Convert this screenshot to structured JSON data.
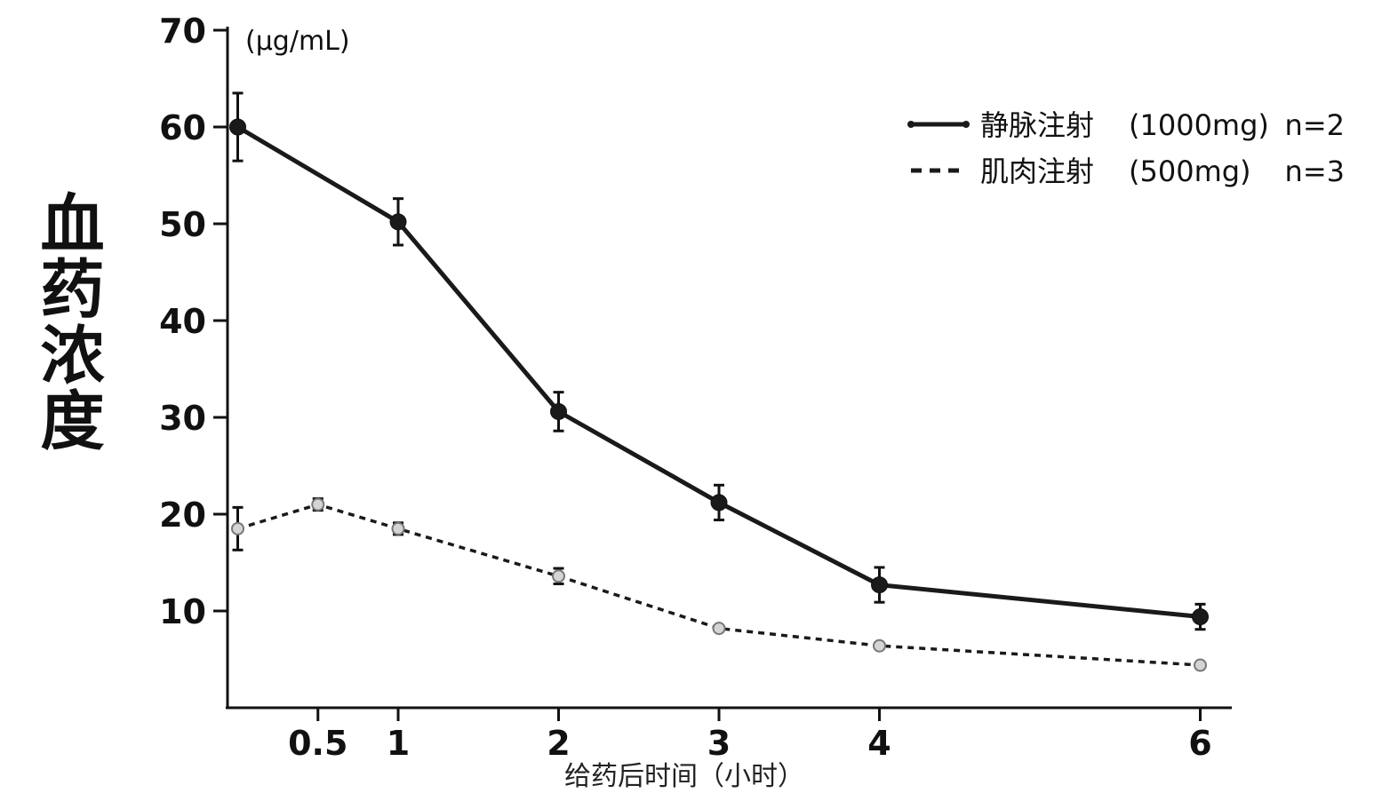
{
  "chart_data": {
    "type": "line",
    "ylabel": "血药浓度",
    "yunit": "(μg/mL)",
    "xlabel": "给药后时间（小时）",
    "ylim": [
      0,
      70
    ],
    "yticks": [
      10,
      20,
      30,
      40,
      50,
      60,
      70
    ],
    "xticks": [
      {
        "value": 0.5,
        "label": "0.5"
      },
      {
        "value": 1,
        "label": "1"
      },
      {
        "value": 2,
        "label": "2"
      },
      {
        "value": 3,
        "label": "3"
      },
      {
        "value": 4,
        "label": "4"
      },
      {
        "value": 6,
        "label": "6"
      }
    ],
    "grid": false,
    "legend_position": "top-right",
    "series": [
      {
        "name": "静脉注射",
        "dose": "(1000mg)",
        "n": "n=2",
        "style": "solid",
        "color": "#1a1a1a",
        "marker_color": "#1a1a1a",
        "x": [
          0,
          1,
          2,
          3,
          4,
          6
        ],
        "y": [
          60,
          50.2,
          30.6,
          21.2,
          12.7,
          9.4
        ],
        "err": [
          3.5,
          2.4,
          2.0,
          1.8,
          1.8,
          1.3
        ]
      },
      {
        "name": "肌肉注射",
        "dose": "(500mg)",
        "n": "n=3",
        "style": "dashed",
        "color": "#1a1a1a",
        "marker_color": "#d4d4d4",
        "x": [
          0,
          0.5,
          1,
          2,
          3,
          4,
          6
        ],
        "y": [
          18.5,
          21,
          18.5,
          13.6,
          8.2,
          6.4,
          4.4
        ],
        "err": [
          2.2,
          0.6,
          0.6,
          0.8,
          null,
          null,
          null
        ]
      }
    ]
  }
}
